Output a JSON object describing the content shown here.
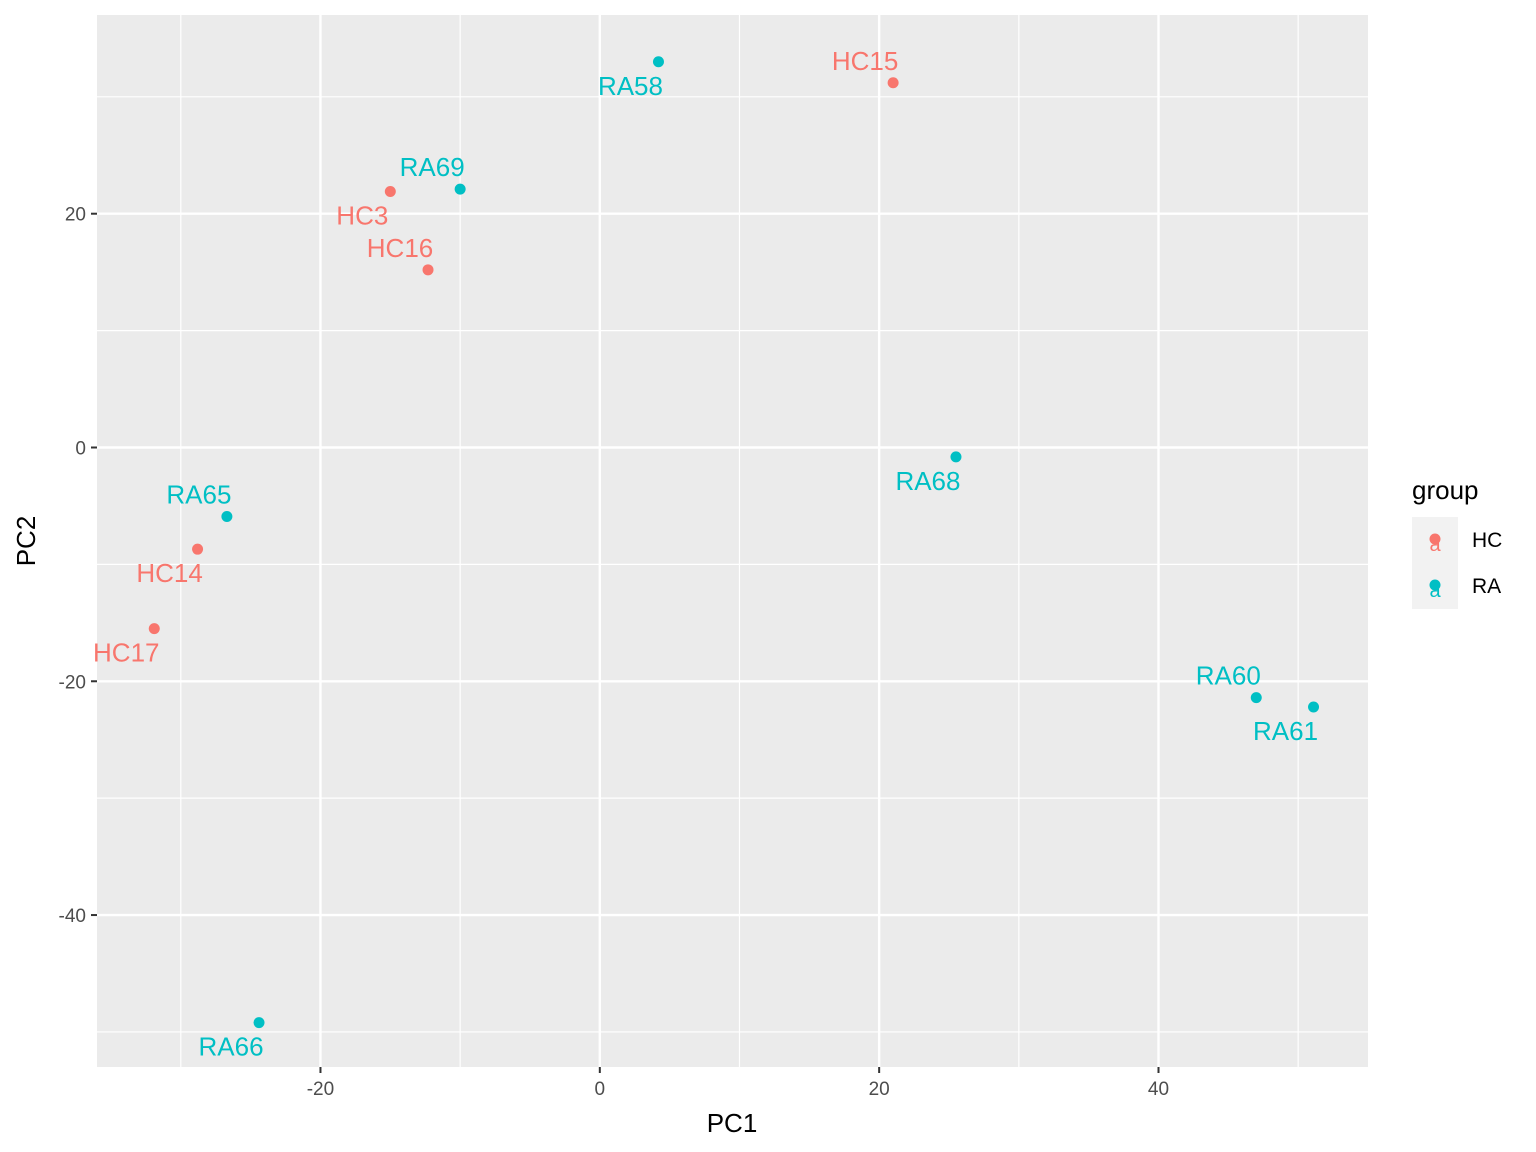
{
  "chart_data": {
    "type": "scatter",
    "title": "",
    "xlabel": "PC1",
    "ylabel": "PC2",
    "xlim": [
      -36,
      55
    ],
    "ylim": [
      -53,
      37
    ],
    "x_ticks": [
      -20,
      0,
      20,
      40
    ],
    "y_ticks": [
      -40,
      -20,
      0,
      20
    ],
    "x_tick_labels": [
      "-20",
      "0",
      "20",
      "40"
    ],
    "y_tick_labels": [
      "-40",
      "-20",
      "0",
      "20"
    ],
    "grid": true,
    "legend_position": "right",
    "legend_title": "group",
    "legend_key_glyph": "a",
    "groups": [
      {
        "name": "HC",
        "color": "#F8766D"
      },
      {
        "name": "RA",
        "color": "#00BFC4"
      }
    ],
    "points": [
      {
        "label": "RA58",
        "group": "RA",
        "x": 4.2,
        "y": 33.0,
        "label_pos": "below"
      },
      {
        "label": "HC15",
        "group": "HC",
        "x": 21.0,
        "y": 31.2,
        "label_pos": "above"
      },
      {
        "label": "RA69",
        "group": "RA",
        "x": -10.0,
        "y": 22.1,
        "label_pos": "above"
      },
      {
        "label": "HC3",
        "group": "HC",
        "x": -15.0,
        "y": 21.9,
        "label_pos": "below"
      },
      {
        "label": "HC16",
        "group": "HC",
        "x": -12.3,
        "y": 15.2,
        "label_pos": "above"
      },
      {
        "label": "RA68",
        "group": "RA",
        "x": 25.5,
        "y": -0.8,
        "label_pos": "below"
      },
      {
        "label": "RA65",
        "group": "RA",
        "x": -26.7,
        "y": -5.9,
        "label_pos": "above"
      },
      {
        "label": "HC14",
        "group": "HC",
        "x": -28.8,
        "y": -8.7,
        "label_pos": "below"
      },
      {
        "label": "HC17",
        "group": "HC",
        "x": -31.9,
        "y": -15.5,
        "label_pos": "below"
      },
      {
        "label": "RA60",
        "group": "RA",
        "x": 47.0,
        "y": -21.4,
        "label_pos": "above"
      },
      {
        "label": "RA61",
        "group": "RA",
        "x": 51.1,
        "y": -22.2,
        "label_pos": "below"
      },
      {
        "label": "RA66",
        "group": "RA",
        "x": -24.4,
        "y": -49.2,
        "label_pos": "below"
      }
    ]
  }
}
